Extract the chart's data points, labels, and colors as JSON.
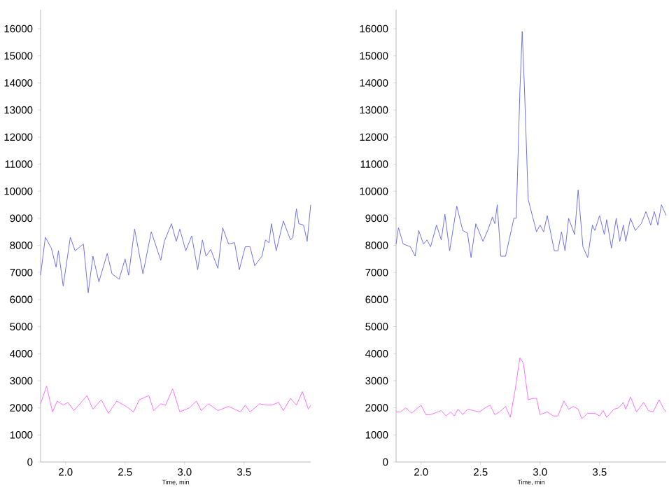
{
  "chart_data": [
    {
      "type": "line",
      "xlabel": "Time, min",
      "xlim": [
        1.79,
        4.06
      ],
      "ylim": [
        0,
        16700
      ],
      "xticks": [
        {
          "value": 2,
          "label": "2.0"
        },
        {
          "value": 2.5,
          "label": "2.5"
        },
        {
          "value": 3,
          "label": "3.0"
        },
        {
          "value": 3.5,
          "label": "3.5"
        }
      ],
      "yticks": [
        0,
        1000,
        2000,
        3000,
        4000,
        5000,
        6000,
        7000,
        8000,
        9000,
        10000,
        11000,
        12000,
        13000,
        14000,
        15000,
        16000
      ],
      "series": [
        {
          "color": "#7070f0",
          "x": [
            1.79,
            1.83,
            1.88,
            1.92,
            1.94,
            1.98,
            2.04,
            2.08,
            2.15,
            2.19,
            2.23,
            2.28,
            2.35,
            2.39,
            2.45,
            2.5,
            2.53,
            2.58,
            2.65,
            2.72,
            2.8,
            2.83,
            2.89,
            2.93,
            2.96,
            3.01,
            3.06,
            3.11,
            3.15,
            3.18,
            3.22,
            3.28,
            3.32,
            3.37,
            3.42,
            3.46,
            3.51,
            3.55,
            3.59,
            3.65,
            3.68,
            3.71,
            3.73,
            3.77,
            3.83,
            3.89,
            3.91,
            3.94,
            3.96,
            4.0,
            4.03,
            4.06
          ],
          "values": [
            6900,
            8300,
            7900,
            7200,
            7800,
            6500,
            8300,
            7800,
            8050,
            6250,
            7600,
            6650,
            7700,
            6950,
            6750,
            7500,
            6900,
            8600,
            6950,
            8500,
            7450,
            8150,
            8800,
            8150,
            8600,
            7800,
            8350,
            7100,
            8200,
            7600,
            7850,
            7150,
            8650,
            8050,
            8100,
            7100,
            7950,
            7950,
            7250,
            7600,
            8200,
            8100,
            8800,
            7800,
            8900,
            8200,
            8300,
            9350,
            8800,
            8750,
            8150,
            9500
          ]
        },
        {
          "color": "#ff70ff",
          "x": [
            1.79,
            1.84,
            1.89,
            1.93,
            1.98,
            2.02,
            2.07,
            2.11,
            2.18,
            2.23,
            2.3,
            2.36,
            2.43,
            2.51,
            2.57,
            2.62,
            2.7,
            2.74,
            2.8,
            2.84,
            2.9,
            2.96,
            3.04,
            3.1,
            3.14,
            3.2,
            3.28,
            3.37,
            3.47,
            3.51,
            3.55,
            3.63,
            3.69,
            3.73,
            3.79,
            3.83,
            3.89,
            3.94,
            3.99,
            4.04,
            4.06
          ],
          "values": [
            2150,
            2800,
            1850,
            2250,
            2100,
            2200,
            1900,
            2100,
            2450,
            1950,
            2300,
            1800,
            2250,
            2050,
            1850,
            2300,
            2450,
            1900,
            2150,
            2100,
            2700,
            1850,
            2000,
            2250,
            1900,
            2150,
            1900,
            2050,
            1850,
            2100,
            1850,
            2150,
            2100,
            2100,
            2200,
            1900,
            2350,
            2100,
            2600,
            1950,
            2100
          ]
        }
      ]
    },
    {
      "type": "line",
      "xlabel": "Time, min",
      "xlim": [
        1.79,
        4.06
      ],
      "ylim": [
        0,
        16700
      ],
      "xticks": [
        {
          "value": 2,
          "label": "2.0"
        },
        {
          "value": 2.5,
          "label": "2.5"
        },
        {
          "value": 3,
          "label": "3.0"
        },
        {
          "value": 3.5,
          "label": "3.5"
        }
      ],
      "yticks": [
        0,
        1000,
        2000,
        3000,
        4000,
        5000,
        6000,
        7000,
        8000,
        9000,
        10000,
        11000,
        12000,
        13000,
        14000,
        15000,
        16000
      ],
      "series": [
        {
          "color": "#7070f0",
          "x": [
            1.79,
            1.81,
            1.85,
            1.91,
            1.95,
            1.98,
            2.02,
            2.05,
            2.08,
            2.13,
            2.17,
            2.2,
            2.24,
            2.3,
            2.35,
            2.39,
            2.42,
            2.46,
            2.52,
            2.56,
            2.6,
            2.62,
            2.64,
            2.67,
            2.71,
            2.75,
            2.78,
            2.8,
            2.83,
            2.85,
            2.87,
            2.9,
            2.97,
            3.0,
            3.03,
            3.06,
            3.12,
            3.15,
            3.18,
            3.21,
            3.24,
            3.29,
            3.32,
            3.36,
            3.4,
            3.44,
            3.46,
            3.5,
            3.54,
            3.56,
            3.6,
            3.64,
            3.67,
            3.7,
            3.72,
            3.76,
            3.8,
            3.85,
            3.89,
            3.93,
            3.96,
            3.99,
            4.02,
            4.06
          ],
          "values": [
            8050,
            8650,
            8050,
            7950,
            7600,
            8550,
            8050,
            8200,
            7950,
            8750,
            8200,
            9150,
            7800,
            9450,
            8550,
            8450,
            7550,
            8800,
            8150,
            8550,
            9050,
            8800,
            9500,
            7600,
            7600,
            8400,
            9000,
            9000,
            13650,
            15900,
            13650,
            9700,
            8500,
            8750,
            8500,
            9100,
            7800,
            7800,
            8500,
            7800,
            9000,
            8400,
            10050,
            7950,
            7550,
            8750,
            8550,
            9100,
            8400,
            8950,
            7900,
            9000,
            8150,
            8750,
            8150,
            9000,
            8550,
            8800,
            9250,
            8750,
            9250,
            8750,
            9500,
            9100
          ]
        },
        {
          "color": "#ff70ff",
          "x": [
            1.79,
            1.83,
            1.87,
            1.92,
            2.0,
            2.04,
            2.08,
            2.17,
            2.21,
            2.25,
            2.28,
            2.31,
            2.35,
            2.39,
            2.44,
            2.49,
            2.54,
            2.58,
            2.62,
            2.66,
            2.71,
            2.75,
            2.79,
            2.83,
            2.86,
            2.9,
            2.94,
            2.97,
            3.0,
            3.06,
            3.11,
            3.15,
            3.2,
            3.24,
            3.28,
            3.32,
            3.35,
            3.4,
            3.46,
            3.5,
            3.53,
            3.56,
            3.62,
            3.66,
            3.7,
            3.72,
            3.76,
            3.81,
            3.87,
            3.91,
            3.95,
            4.0,
            4.04,
            4.06
          ],
          "values": [
            1850,
            1850,
            2000,
            1800,
            2100,
            1750,
            1750,
            1900,
            1700,
            1850,
            1700,
            1950,
            1750,
            1950,
            1900,
            1850,
            2000,
            2100,
            1750,
            1850,
            2050,
            1650,
            2650,
            3850,
            3650,
            2300,
            2350,
            2350,
            1750,
            1850,
            1700,
            1700,
            2250,
            1950,
            2050,
            1950,
            1600,
            1800,
            1800,
            1700,
            1900,
            1650,
            1950,
            2000,
            2200,
            1950,
            2400,
            1850,
            2200,
            1900,
            1850,
            2300,
            1950,
            1850
          ]
        }
      ]
    }
  ]
}
